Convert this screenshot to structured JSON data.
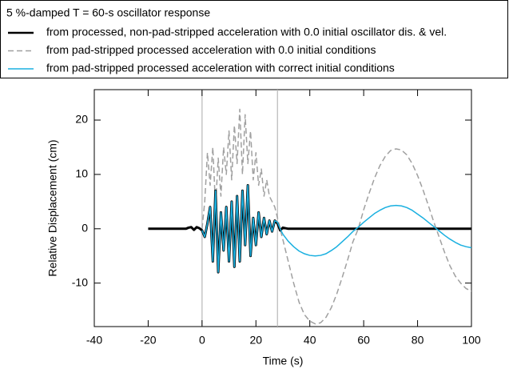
{
  "chart_data": {
    "type": "line",
    "legend_title": "5 %-damped T = 60-s oscillator response",
    "xlabel": "Time (s)",
    "ylabel": "Relative Displacement (cm)",
    "xlim": [
      -40,
      100
    ],
    "ylim": [
      -18,
      25.6
    ],
    "xticks": [
      -40,
      -20,
      0,
      20,
      40,
      60,
      80,
      100
    ],
    "yticks": [
      -10,
      0,
      10,
      20
    ],
    "vlines": [
      0,
      28
    ],
    "vline_color": "#b8b8b8",
    "legend": "top-left",
    "x": [
      -20,
      -15,
      -10,
      -6,
      -5,
      -4,
      -3,
      -2,
      -1,
      0,
      1,
      2,
      3,
      4,
      5,
      6,
      7,
      8,
      9,
      10,
      11,
      12,
      13,
      14,
      15,
      16,
      17,
      18,
      19,
      20,
      21,
      22,
      23,
      24,
      25,
      26,
      27,
      28,
      29,
      30,
      32,
      34,
      36,
      38,
      40,
      42,
      44,
      46,
      48,
      50,
      52,
      54,
      56,
      58,
      60,
      62,
      64,
      66,
      68,
      70,
      72,
      74,
      76,
      78,
      80,
      82,
      84,
      86,
      88,
      90,
      92,
      94,
      96,
      98,
      100
    ],
    "series": [
      {
        "name": "from processed, non-pad-stripped acceleration with 0.0 initial oscillator dis. & vel.",
        "color": "#000000",
        "width": 3,
        "dashed": false,
        "values": [
          0,
          0,
          0,
          0,
          0.2,
          0.3,
          -0.2,
          0.3,
          0.1,
          -0.3,
          -1.5,
          1,
          4,
          -6,
          7,
          -8,
          3,
          -4,
          4,
          -6,
          5,
          -7,
          6,
          -6,
          7,
          -3,
          8,
          -5,
          2,
          -3,
          3,
          -1.5,
          2,
          -1,
          1.5,
          -0.5,
          1.5,
          1,
          -0.3,
          0.2,
          0,
          0,
          0,
          0,
          0,
          0,
          0,
          0,
          0,
          0,
          0,
          0,
          0,
          0,
          0,
          0,
          0,
          0,
          0,
          0,
          0,
          0,
          0,
          0,
          0,
          0,
          0,
          0,
          0,
          0,
          0,
          0,
          0,
          0,
          0
        ]
      },
      {
        "name": "from pad-stripped processed acceleration with 0.0 initial conditions",
        "color": "#a0a0a0",
        "width": 1.5,
        "dashed": true,
        "values": [
          null,
          null,
          null,
          null,
          null,
          null,
          null,
          null,
          null,
          0,
          5,
          14,
          8,
          15,
          4,
          13,
          6,
          15,
          10,
          18,
          9,
          19,
          12,
          22,
          10,
          21,
          12,
          18,
          9,
          14,
          8,
          11,
          6,
          9,
          6,
          5,
          4,
          2,
          0,
          -2,
          -6,
          -10,
          -13.5,
          -15.8,
          -17,
          -17.5,
          -17.3,
          -16.3,
          -14.5,
          -12,
          -9,
          -5.8,
          -2.4,
          0,
          3.5,
          6.5,
          9.3,
          11.6,
          13.3,
          14.4,
          14.7,
          14.5,
          13.6,
          12,
          9.8,
          7.2,
          4.3,
          1.3,
          -1.5,
          -4.3,
          -6.8,
          -8.7,
          -10,
          -11,
          -11.5
        ]
      },
      {
        "name": "from pad-stripped processed acceleration with correct initial conditions",
        "color": "#1ab0e0",
        "width": 1.5,
        "dashed": false,
        "values": [
          null,
          null,
          null,
          null,
          null,
          null,
          null,
          null,
          null,
          -0.3,
          -1.5,
          1,
          4,
          -6,
          7,
          -8,
          3,
          -4,
          4,
          -6,
          5,
          -7,
          6,
          -6,
          7,
          -3,
          8,
          -5,
          2,
          -3,
          3,
          -1.5,
          2,
          -1,
          1.5,
          -0.5,
          1.5,
          1.2,
          0,
          -1,
          -2.3,
          -3.3,
          -4.1,
          -4.6,
          -4.9,
          -5,
          -4.9,
          -4.6,
          -4,
          -3.3,
          -2.4,
          -1.5,
          -0.5,
          0.3,
          1.2,
          2,
          2.8,
          3.4,
          3.9,
          4.2,
          4.3,
          4.2,
          3.9,
          3.4,
          2.7,
          2,
          1.2,
          0.4,
          -0.4,
          -1.2,
          -1.9,
          -2.5,
          -3,
          -3.3,
          -3.5
        ]
      }
    ]
  }
}
